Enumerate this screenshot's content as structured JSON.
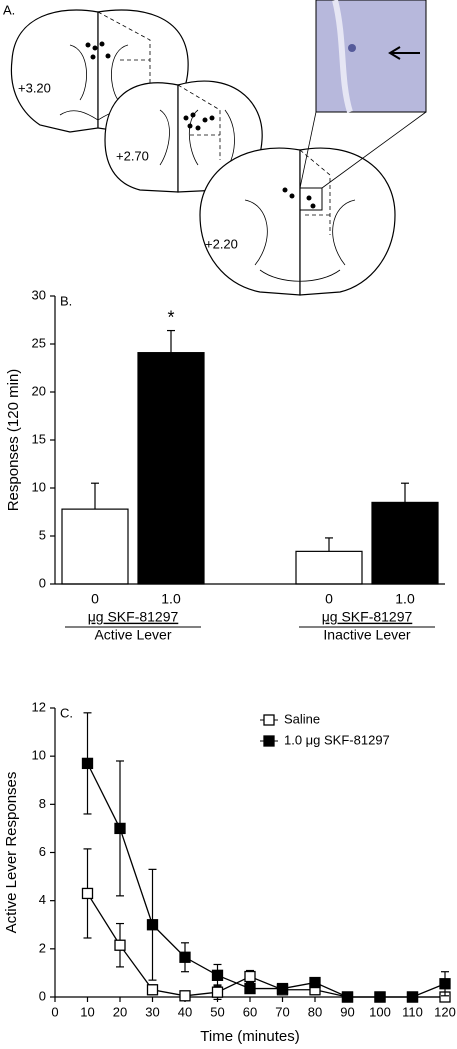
{
  "diagram": {
    "panel_label": "A.",
    "section_labels": [
      "+3.20",
      "+2.70",
      "+2.20"
    ]
  },
  "chart_data": [
    {
      "type": "bar",
      "panel_label": "B.",
      "y_label": "Responses (120 min)",
      "categories": [
        "Active Lever",
        "Inactive Lever"
      ],
      "dose_label": "μg SKF-81297",
      "series": [
        {
          "name": "0",
          "color": "#ffffff",
          "values": [
            7.8,
            3.4
          ],
          "errors": [
            2.7,
            1.4
          ]
        },
        {
          "name": "1.0",
          "color": "#000000",
          "values": [
            24.1,
            8.5
          ],
          "errors": [
            2.3,
            2.0
          ]
        }
      ],
      "annotation": "*",
      "ylim": [
        0,
        30
      ],
      "yticks": [
        0,
        5,
        10,
        15,
        20,
        25,
        30
      ]
    },
    {
      "type": "line",
      "panel_label": "C.",
      "x_label": "Time (minutes)",
      "y_label": "Active Lever Responses",
      "x": [
        10,
        20,
        30,
        40,
        50,
        60,
        70,
        80,
        90,
        100,
        110,
        120
      ],
      "series": [
        {
          "name": "Saline",
          "color": "#ffffff",
          "values": [
            4.3,
            2.15,
            0.3,
            0.05,
            0.2,
            0.85,
            0.3,
            0.3,
            0,
            0,
            0,
            0
          ],
          "errors": [
            1.85,
            0.9,
            0.2,
            0.05,
            0.3,
            0.25,
            0.2,
            0.2,
            0,
            0,
            0,
            0.1
          ]
        },
        {
          "name": "1.0 μg SKF-81297",
          "color": "#000000",
          "values": [
            9.7,
            7.0,
            3.0,
            1.65,
            0.9,
            0.35,
            0.35,
            0.6,
            0,
            0,
            0,
            0.55
          ],
          "errors": [
            2.1,
            2.8,
            2.3,
            0.6,
            0.45,
            0.2,
            0.2,
            0.15,
            0,
            0,
            0,
            0.5
          ]
        }
      ],
      "xlim": [
        0,
        120
      ],
      "xticks": [
        0,
        10,
        20,
        30,
        40,
        50,
        60,
        70,
        80,
        90,
        100,
        110,
        120
      ],
      "ylim": [
        0,
        12
      ],
      "yticks": [
        0,
        2,
        4,
        6,
        8,
        10,
        12
      ],
      "legend": "upper right"
    }
  ]
}
